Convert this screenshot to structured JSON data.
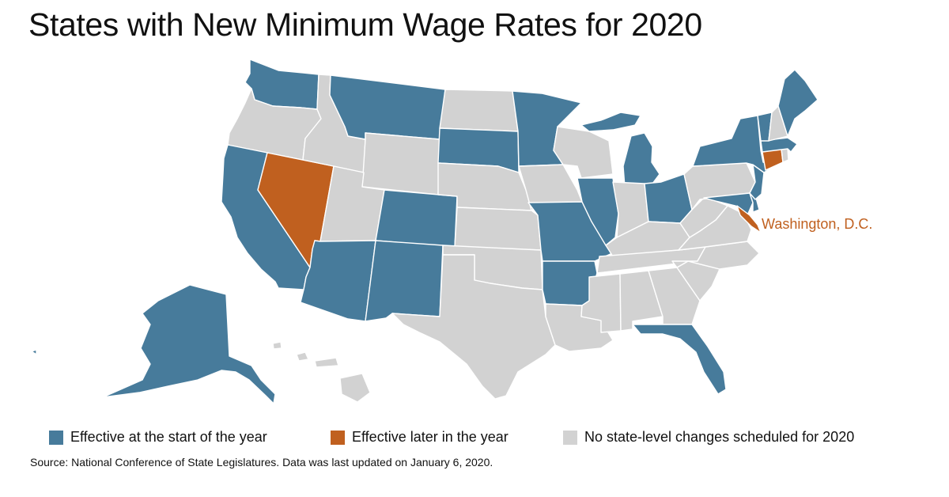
{
  "title": "States with New Minimum Wage Rates for 2020",
  "colors": {
    "start": "#477b9b",
    "later": "#c0601f",
    "none": "#d2d2d2",
    "border": "#ffffff"
  },
  "legend": [
    {
      "key": "start",
      "label": "Effective at the start of the year"
    },
    {
      "key": "later",
      "label": "Effective later in the year"
    },
    {
      "key": "none",
      "label": "No state-level changes scheduled for 2020"
    }
  ],
  "annotation": "Washington, D.C.",
  "source": "Source: National Conference of State Legislatures. Data was last updated on January 6, 2020.",
  "states": {
    "WA": "start",
    "OR": "none",
    "CA": "start",
    "NV": "later",
    "ID": "none",
    "MT": "start",
    "WY": "none",
    "UT": "none",
    "AZ": "start",
    "CO": "start",
    "NM": "start",
    "ND": "none",
    "SD": "start",
    "NE": "none",
    "KS": "none",
    "OK": "none",
    "TX": "none",
    "MN": "start",
    "IA": "none",
    "MO": "start",
    "AR": "start",
    "LA": "none",
    "WI": "none",
    "IL": "start",
    "MI": "start",
    "IN": "none",
    "OH": "start",
    "KY": "none",
    "TN": "none",
    "MS": "none",
    "AL": "none",
    "GA": "none",
    "FL": "start",
    "SC": "none",
    "NC": "none",
    "VA": "none",
    "WV": "none",
    "MD": "start",
    "DE": "start",
    "NJ": "start",
    "PA": "none",
    "NY": "start",
    "CT": "later",
    "RI": "none",
    "MA": "start",
    "VT": "start",
    "NH": "none",
    "ME": "start",
    "AK": "start",
    "HI": "none",
    "DC": "later"
  }
}
